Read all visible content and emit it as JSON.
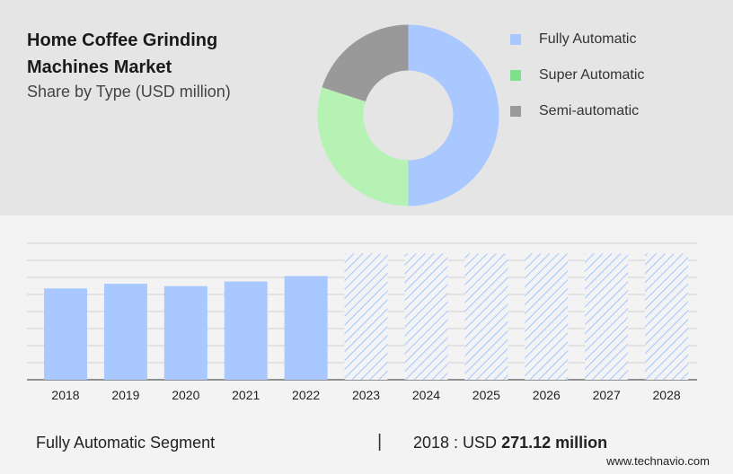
{
  "header": {
    "title": "Home Coffee Grinding Machines Market",
    "subtitle": "Share by Type (USD million)"
  },
  "legend": [
    {
      "label": "Fully Automatic",
      "color": "#a8c8ff"
    },
    {
      "label": "Super Automatic",
      "color": "#7ee08a"
    },
    {
      "label": "Semi-automatic",
      "color": "#9a9a9a"
    }
  ],
  "chart_data": [
    {
      "type": "pie",
      "title": "Share by Type (USD million)",
      "labels": [
        "Fully Automatic",
        "Super Automatic",
        "Semi-automatic"
      ],
      "values": [
        50,
        30,
        20
      ],
      "colors": [
        "#a8c8ff",
        "#b6f2b4",
        "#999999"
      ]
    },
    {
      "type": "bar",
      "categories": [
        "2018",
        "2019",
        "2020",
        "2021",
        "2022",
        "2023",
        "2024",
        "2025",
        "2026",
        "2027",
        "2028"
      ],
      "values": [
        271.12,
        285,
        278,
        292,
        308,
        375,
        375,
        375,
        375,
        375,
        375
      ],
      "forecast_from": "2023",
      "ylim": [
        0,
        400
      ],
      "grid": true,
      "bar_color": "#a8c8ff",
      "forecast_color": "#a8c8ff"
    }
  ],
  "footer": {
    "segment": "Fully Automatic Segment",
    "separator": "|",
    "year_prefix": "2018 : USD ",
    "value": "271.12 million",
    "site": "www.technavio.com"
  }
}
